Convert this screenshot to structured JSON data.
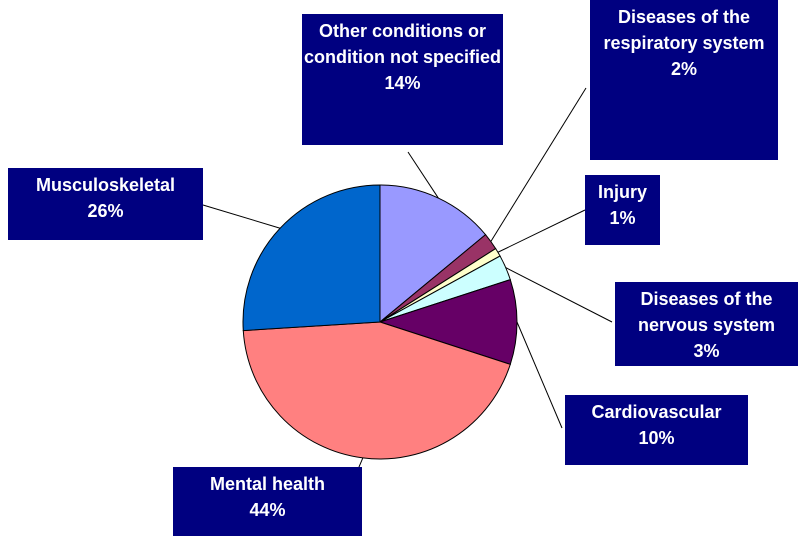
{
  "chart_data": {
    "type": "pie",
    "categories": [
      "Other conditions or condition not specified",
      "Diseases of the respiratory system",
      "Injury",
      "Diseases of the nervous system",
      "Cardiovascular",
      "Mental health",
      "Musculoskeletal"
    ],
    "values": [
      14,
      2,
      1,
      3,
      10,
      44,
      26
    ],
    "value_labels": [
      "14%",
      "2%",
      "1%",
      "3%",
      "10%",
      "44%",
      "26%"
    ],
    "colors": [
      "#9999ff",
      "#993366",
      "#ffffcc",
      "#ccffff",
      "#660066",
      "#ff8080",
      "#0066cc"
    ]
  }
}
